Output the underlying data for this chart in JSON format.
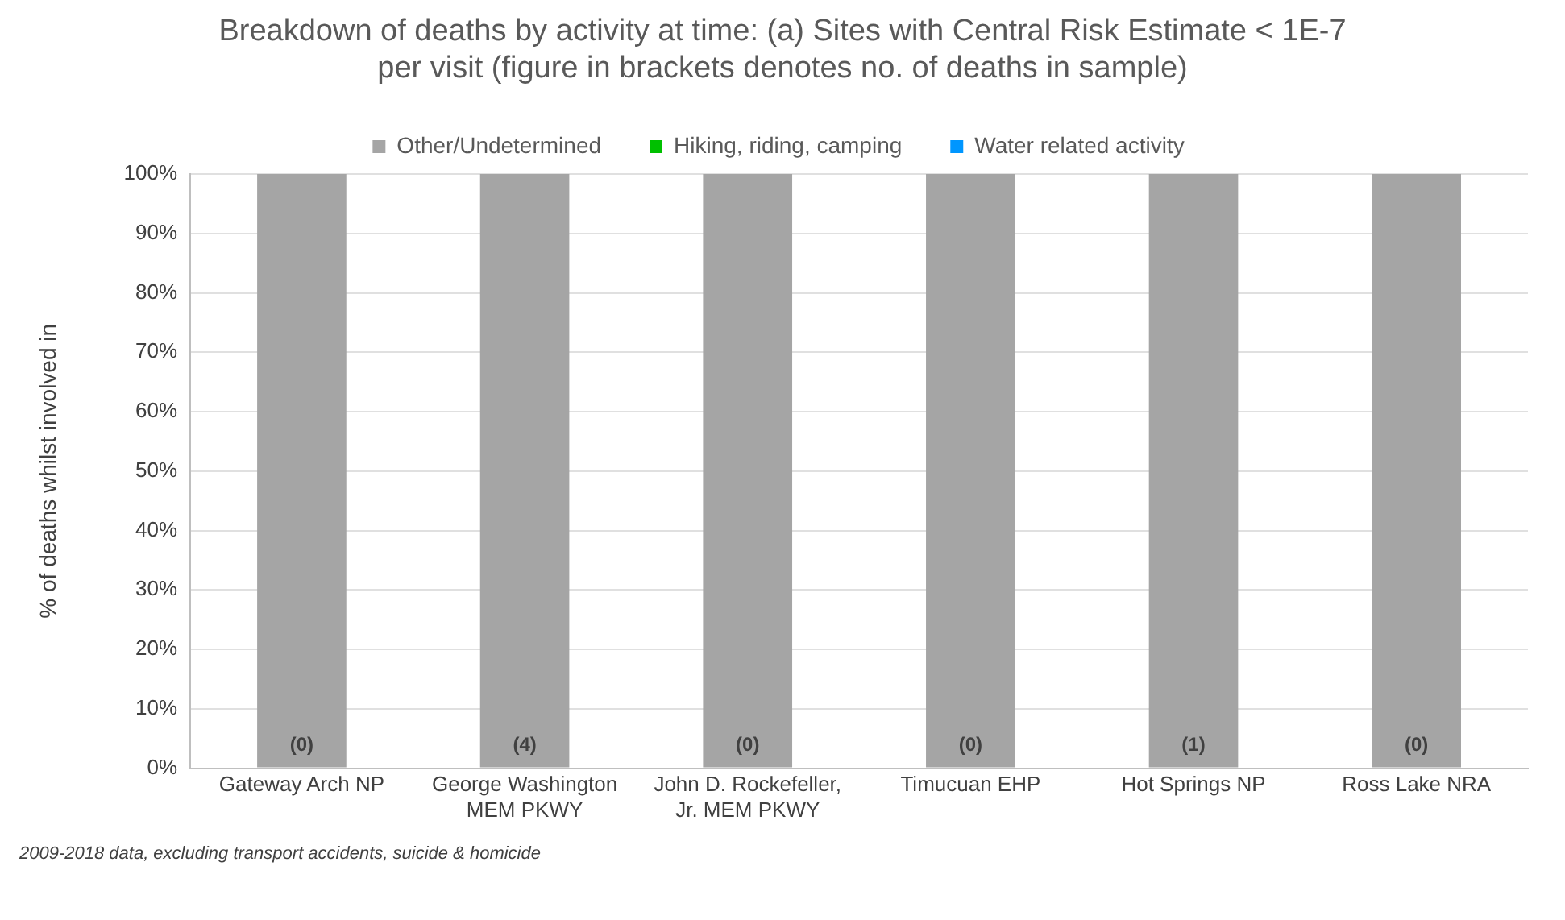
{
  "chart_data": {
    "type": "bar",
    "title": "Breakdown of deaths by activity at time: (a) Sites with Central Risk Estimate < 1E-7 per visit (figure in brackets denotes no. of deaths in sample)",
    "ylabel": "% of deaths whilst involved in",
    "categories": [
      "Gateway Arch NP",
      "George Washington MEM PKWY",
      "John D. Rockefeller, Jr. MEM PKWY",
      "Timucuan EHP",
      "Hot Springs NP",
      "Ross Lake NRA"
    ],
    "series": [
      {
        "name": "Other/Undetermined",
        "color": "#a5a5a5",
        "values": [
          100,
          100,
          100,
          100,
          100,
          100
        ]
      },
      {
        "name": "Hiking, riding, camping",
        "color": "#00c000",
        "values": [
          0,
          0,
          0,
          0,
          0,
          0
        ]
      },
      {
        "name": "Water related activity",
        "color": "#0096ff",
        "values": [
          0,
          0,
          0,
          0,
          0,
          0
        ]
      }
    ],
    "stacked": true,
    "ylim": [
      0,
      100
    ],
    "yticks": [
      {
        "value": 0,
        "label": "0%"
      },
      {
        "value": 10,
        "label": "10%"
      },
      {
        "value": 20,
        "label": "20%"
      },
      {
        "value": 30,
        "label": "30%"
      },
      {
        "value": 40,
        "label": "40%"
      },
      {
        "value": 50,
        "label": "50%"
      },
      {
        "value": 60,
        "label": "60%"
      },
      {
        "value": 70,
        "label": "70%"
      },
      {
        "value": 80,
        "label": "80%"
      },
      {
        "value": 90,
        "label": "90%"
      },
      {
        "value": 100,
        "label": "100%"
      }
    ],
    "grid": "y",
    "legend": "top",
    "annotations": [
      "(0)",
      "(4)",
      "(0)",
      "(0)",
      "(1)",
      "(0)",
      "2009-2018 data, excluding transport accidents, suicide & homicide"
    ]
  }
}
